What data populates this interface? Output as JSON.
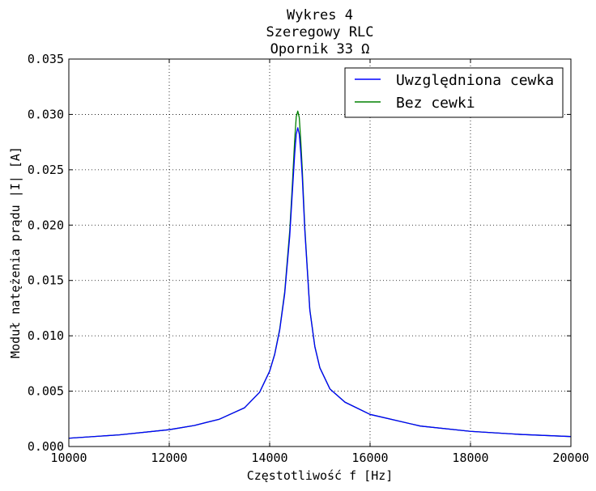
{
  "chart_data": {
    "type": "line",
    "title_lines": [
      "Wykres 4",
      "Szeregowy RLC",
      "Opornik 33 Ω"
    ],
    "xlabel": "Częstotliwość f [Hz]",
    "ylabel": "Moduł natężenia prądu |I| [A]",
    "xlim": [
      10000,
      20000
    ],
    "ylim": [
      0,
      0.035
    ],
    "xticks": [
      10000,
      12000,
      14000,
      16000,
      18000,
      20000
    ],
    "yticks": [
      0.0,
      0.005,
      0.01,
      0.015,
      0.02,
      0.025,
      0.03,
      0.035
    ],
    "xtick_labels": [
      "10000",
      "12000",
      "14000",
      "16000",
      "18000",
      "20000"
    ],
    "ytick_labels": [
      "0.000",
      "0.005",
      "0.010",
      "0.015",
      "0.020",
      "0.025",
      "0.030",
      "0.035"
    ],
    "grid": true,
    "legend_position": "top-right",
    "x": [
      10000,
      11000,
      12000,
      12500,
      13000,
      13500,
      13800,
      14000,
      14100,
      14200,
      14300,
      14400,
      14450,
      14500,
      14530,
      14560,
      14590,
      14620,
      14650,
      14700,
      14800,
      14900,
      15000,
      15200,
      15500,
      16000,
      17000,
      18000,
      19000,
      20000
    ],
    "series": [
      {
        "name": "Uwzględniona cewka",
        "color": "#0000ff",
        "values": [
          0.00075,
          0.00105,
          0.00152,
          0.0019,
          0.00247,
          0.0035,
          0.0049,
          0.0068,
          0.0083,
          0.0105,
          0.0138,
          0.019,
          0.0228,
          0.0265,
          0.0282,
          0.0288,
          0.0282,
          0.0265,
          0.0243,
          0.0195,
          0.0123,
          0.009,
          0.0071,
          0.0052,
          0.004,
          0.0029,
          0.00185,
          0.00137,
          0.00109,
          0.0009
        ]
      },
      {
        "name": "Bez cewki",
        "color": "#008000",
        "values": [
          0.00075,
          0.00105,
          0.00152,
          0.0019,
          0.00247,
          0.0035,
          0.0049,
          0.00682,
          0.00835,
          0.0106,
          0.014,
          0.0195,
          0.0235,
          0.0278,
          0.0298,
          0.0303,
          0.0297,
          0.0276,
          0.025,
          0.0198,
          0.0124,
          0.00905,
          0.00712,
          0.00521,
          0.00401,
          0.0029,
          0.00185,
          0.00137,
          0.00109,
          0.0009
        ]
      }
    ]
  }
}
